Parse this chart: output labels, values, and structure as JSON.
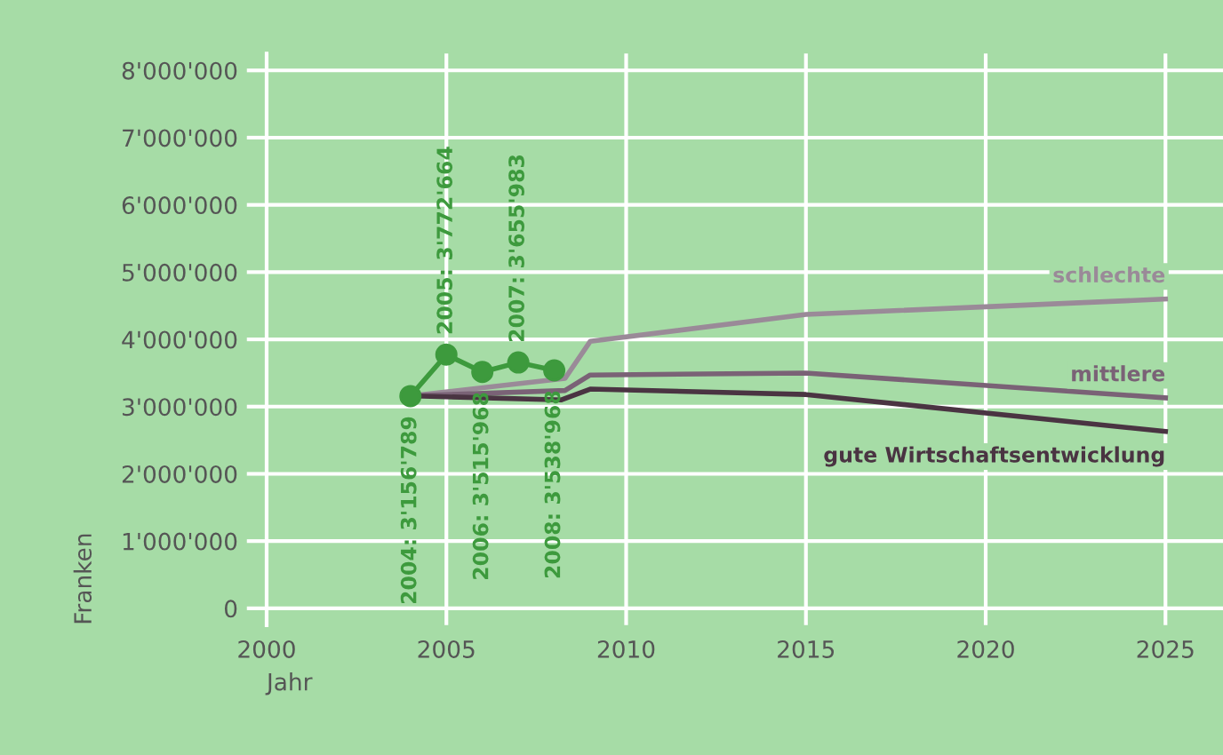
{
  "chart_data": {
    "type": "line",
    "xlabel": "Jahr",
    "ylabel": "Franken",
    "xlim": [
      2000,
      2026.6
    ],
    "ylim": [
      -250000,
      8250000
    ],
    "xticks": [
      2000,
      2005,
      2010,
      2015,
      2020,
      2025
    ],
    "yticks": [
      {
        "value": 0,
        "label": "0"
      },
      {
        "value": 1000000,
        "label": "1'000'000"
      },
      {
        "value": 2000000,
        "label": "2'000'000"
      },
      {
        "value": 3000000,
        "label": "3'000'000"
      },
      {
        "value": 4000000,
        "label": "4'000'000"
      },
      {
        "value": 5000000,
        "label": "5'000'000"
      },
      {
        "value": 6000000,
        "label": "6'000'000"
      },
      {
        "value": 7000000,
        "label": "7'000'000"
      },
      {
        "value": 8000000,
        "label": "8'000'000"
      }
    ],
    "grid": true,
    "series": [
      {
        "name": "schlechte",
        "color": "#9a8a98",
        "x": [
          2004,
          2008.3,
          2009,
          2015,
          2025
        ],
        "values": [
          3160000,
          3420000,
          3970000,
          4370000,
          4600000
        ],
        "marker": "none"
      },
      {
        "name": "mittlere",
        "color": "#7a6276",
        "x": [
          2004,
          2008.3,
          2009,
          2015,
          2025
        ],
        "values": [
          3160000,
          3240000,
          3470000,
          3500000,
          3130000
        ],
        "marker": "none"
      },
      {
        "name": "gute Wirtschaftsentwicklung",
        "color": "#4a3442",
        "x": [
          2004,
          2008.2,
          2009,
          2015,
          2025
        ],
        "values": [
          3160000,
          3100000,
          3260000,
          3180000,
          2630000
        ],
        "marker": "none"
      },
      {
        "color": "#3d9a3d",
        "x": [
          2004,
          2005,
          2006,
          2007,
          2008
        ],
        "values": [
          3156789,
          3772664,
          3515968,
          3655983,
          3538968
        ],
        "marker": "circle",
        "value_labels": [
          "2004: 3'156'789",
          "2005: 3'772'664",
          "2006: 3'515'968",
          "2007: 3'655'983",
          "2008: 3'538'968"
        ]
      }
    ]
  }
}
